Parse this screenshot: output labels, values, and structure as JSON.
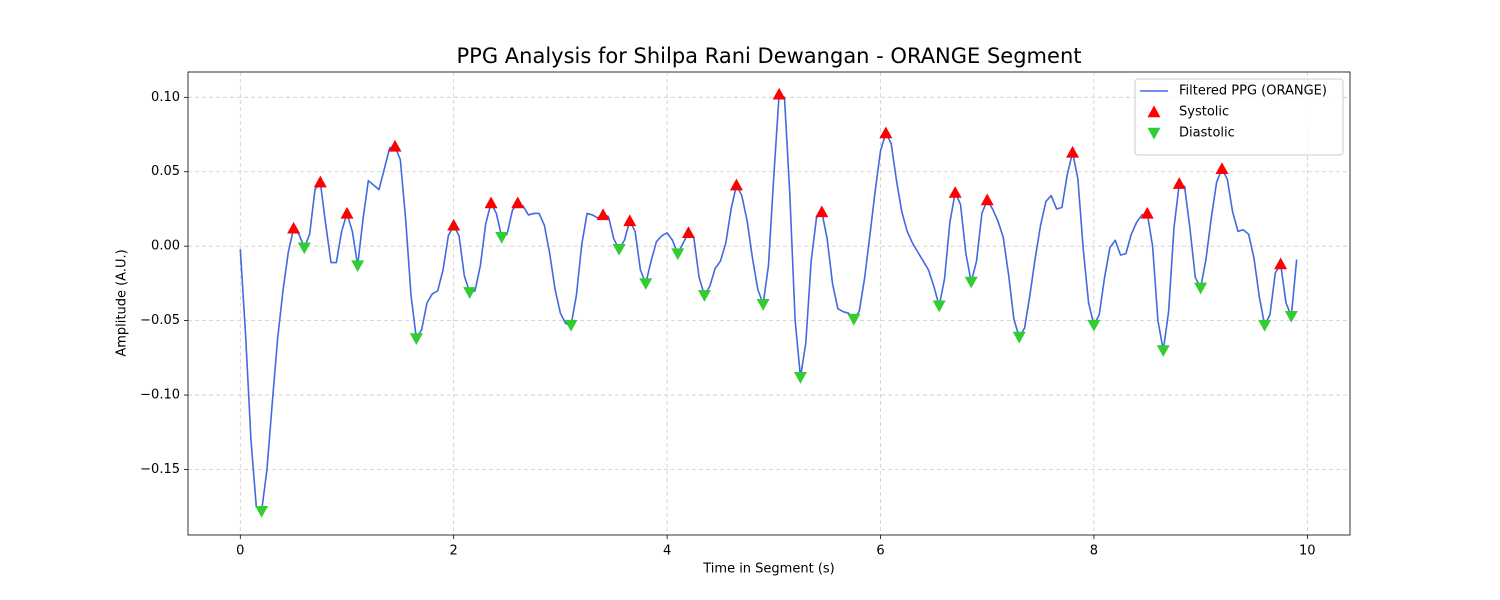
{
  "chart_data": {
    "type": "line",
    "title": "PPG Analysis for Shilpa Rani Dewangan - ORANGE Segment",
    "xlabel": "Time in Segment (s)",
    "ylabel": "Amplitude (A.U.)",
    "xlim": [
      -0.49,
      10.4
    ],
    "ylim": [
      -0.194,
      0.117
    ],
    "xticks": [
      0,
      2,
      4,
      6,
      8,
      10
    ],
    "yticks": [
      {
        "value": -0.15,
        "label": "−0.15"
      },
      {
        "value": -0.1,
        "label": "−0.10"
      },
      {
        "value": -0.05,
        "label": "−0.05"
      },
      {
        "value": 0,
        "label": "0.00"
      },
      {
        "value": 0.05,
        "label": "0.05"
      },
      {
        "value": 0.1,
        "label": "0.10"
      }
    ],
    "grid": true,
    "legend": "upper right",
    "x": [
      0,
      0.05,
      0.1,
      0.15,
      0.2,
      0.25,
      0.3,
      0.35,
      0.4,
      0.45,
      0.5,
      0.55,
      0.6,
      0.65,
      0.7,
      0.75,
      0.8,
      0.85,
      0.9,
      0.95,
      1,
      1.05,
      1.1,
      1.15,
      1.2,
      1.25,
      1.3,
      1.35,
      1.4,
      1.45,
      1.5,
      1.55,
      1.6,
      1.65,
      1.7,
      1.75,
      1.8,
      1.85,
      1.9,
      1.95,
      2,
      2.05,
      2.1,
      2.15,
      2.2,
      2.25,
      2.3,
      2.35,
      2.4,
      2.45,
      2.5,
      2.55,
      2.6,
      2.65,
      2.7,
      2.75,
      2.8,
      2.85,
      2.9,
      2.95,
      3,
      3.05,
      3.1,
      3.15,
      3.2,
      3.25,
      3.3,
      3.35,
      3.4,
      3.45,
      3.5,
      3.55,
      3.6,
      3.65,
      3.7,
      3.75,
      3.8,
      3.85,
      3.9,
      3.95,
      4,
      4.05,
      4.1,
      4.15,
      4.2,
      4.25,
      4.3,
      4.35,
      4.4,
      4.45,
      4.5,
      4.55,
      4.6,
      4.65,
      4.7,
      4.75,
      4.8,
      4.85,
      4.9,
      4.95,
      5,
      5.05,
      5.1,
      5.15,
      5.2,
      5.25,
      5.3,
      5.35,
      5.4,
      5.45,
      5.5,
      5.55,
      5.6,
      5.65,
      5.7,
      5.75,
      5.8,
      5.85,
      5.9,
      5.95,
      6,
      6.05,
      6.1,
      6.15,
      6.2,
      6.25,
      6.3,
      6.35,
      6.4,
      6.45,
      6.5,
      6.55,
      6.6,
      6.65,
      6.7,
      6.75,
      6.8,
      6.85,
      6.9,
      6.95,
      7,
      7.05,
      7.1,
      7.15,
      7.2,
      7.25,
      7.3,
      7.35,
      7.4,
      7.45,
      7.5,
      7.55,
      7.6,
      7.65,
      7.7,
      7.75,
      7.8,
      7.85,
      7.9,
      7.95,
      8,
      8.05,
      8.1,
      8.15,
      8.2,
      8.25,
      8.3,
      8.35,
      8.4,
      8.45,
      8.5,
      8.55,
      8.6,
      8.65,
      8.7,
      8.75,
      8.8,
      8.85,
      8.9,
      8.95,
      9,
      9.05,
      9.1,
      9.15,
      9.2,
      9.25,
      9.3,
      9.35,
      9.4,
      9.45,
      9.5,
      9.55,
      9.6,
      9.65,
      9.7,
      9.75,
      9.8,
      9.85,
      9.9
    ],
    "series": [
      {
        "name": "Filtered PPG (ORANGE)",
        "type": "line",
        "color": "#4169e1",
        "values": [
          -0.002,
          -0.06,
          -0.13,
          -0.175,
          -0.178,
          -0.15,
          -0.105,
          -0.062,
          -0.03,
          -0.004,
          0.012,
          0.008,
          -0.001,
          0.008,
          0.038,
          0.043,
          0.015,
          -0.011,
          -0.011,
          0.01,
          0.022,
          0.01,
          -0.013,
          0.018,
          0.044,
          0.041,
          0.038,
          0.052,
          0.066,
          0.067,
          0.058,
          0.018,
          -0.033,
          -0.062,
          -0.056,
          -0.038,
          -0.032,
          -0.03,
          -0.016,
          0.007,
          0.014,
          0.007,
          -0.02,
          -0.031,
          -0.03,
          -0.013,
          0.015,
          0.029,
          0.022,
          0.006,
          0.008,
          0.024,
          0.029,
          0.027,
          0.021,
          0.022,
          0.022,
          0.014,
          -0.005,
          -0.029,
          -0.045,
          -0.052,
          -0.053,
          -0.033,
          0.001,
          0.022,
          0.021,
          0.019,
          0.021,
          0.02,
          0.005,
          -0.002,
          0.004,
          0.017,
          0.01,
          -0.016,
          -0.025,
          -0.01,
          0.003,
          0.007,
          0.009,
          0.004,
          -0.005,
          0.002,
          0.009,
          0.006,
          -0.021,
          -0.033,
          -0.027,
          -0.015,
          -0.01,
          0.002,
          0.025,
          0.041,
          0.034,
          0.017,
          -0.008,
          -0.029,
          -0.039,
          -0.013,
          0.047,
          0.102,
          0.1,
          0.035,
          -0.05,
          -0.088,
          -0.065,
          -0.01,
          0.019,
          0.023,
          0.005,
          -0.025,
          -0.042,
          -0.044,
          -0.045,
          -0.049,
          -0.044,
          -0.022,
          0.007,
          0.037,
          0.064,
          0.076,
          0.069,
          0.044,
          0.023,
          0.01,
          0.002,
          -0.004,
          -0.01,
          -0.016,
          -0.027,
          -0.04,
          -0.022,
          0.016,
          0.036,
          0.028,
          -0.005,
          -0.024,
          -0.01,
          0.022,
          0.031,
          0.025,
          0.017,
          0.006,
          -0.019,
          -0.049,
          -0.061,
          -0.055,
          -0.033,
          -0.008,
          0.014,
          0.03,
          0.034,
          0.025,
          0.026,
          0.048,
          0.063,
          0.045,
          -0.002,
          -0.038,
          -0.053,
          -0.046,
          -0.021,
          -0.001,
          0.004,
          -0.006,
          -0.005,
          0.008,
          0.016,
          0.021,
          0.022,
          0,
          -0.05,
          -0.07,
          -0.044,
          0.012,
          0.042,
          0.04,
          0.012,
          -0.021,
          -0.028,
          -0.009,
          0.019,
          0.043,
          0.052,
          0.045,
          0.023,
          0.01,
          0.011,
          0.008,
          -0.008,
          -0.034,
          -0.053,
          -0.046,
          -0.018,
          -0.012,
          -0.038,
          -0.047,
          -0.009
        ]
      },
      {
        "name": "Systolic",
        "type": "scatter",
        "marker": "triangle-up",
        "color": "#ff0000",
        "x": [
          0.5,
          0.75,
          1,
          1.45,
          2,
          2.35,
          2.6,
          3.4,
          3.65,
          4.2,
          4.65,
          5.05,
          5.45,
          6.05,
          6.7,
          7,
          7.8,
          8.5,
          8.8,
          9.2,
          9.75
        ],
        "values": [
          0.012,
          0.043,
          0.022,
          0.067,
          0.014,
          0.029,
          0.029,
          0.021,
          0.017,
          0.009,
          0.041,
          0.102,
          0.023,
          0.076,
          0.036,
          0.031,
          0.063,
          0.022,
          0.042,
          0.052,
          -0.012
        ]
      },
      {
        "name": "Diastolic",
        "type": "scatter",
        "marker": "triangle-down",
        "color": "#32cd32",
        "x": [
          0.2,
          0.6,
          1.1,
          1.65,
          2.15,
          2.45,
          3.1,
          3.55,
          3.8,
          4.1,
          4.35,
          4.9,
          5.25,
          5.75,
          6.55,
          6.85,
          7.3,
          8,
          8.65,
          9,
          9.6,
          9.85
        ],
        "values": [
          -0.178,
          -0.001,
          -0.013,
          -0.062,
          -0.031,
          0.006,
          -0.053,
          -0.002,
          -0.025,
          -0.005,
          -0.033,
          -0.039,
          -0.088,
          -0.049,
          -0.04,
          -0.024,
          -0.061,
          -0.053,
          -0.07,
          -0.028,
          -0.053,
          -0.047
        ]
      }
    ]
  }
}
